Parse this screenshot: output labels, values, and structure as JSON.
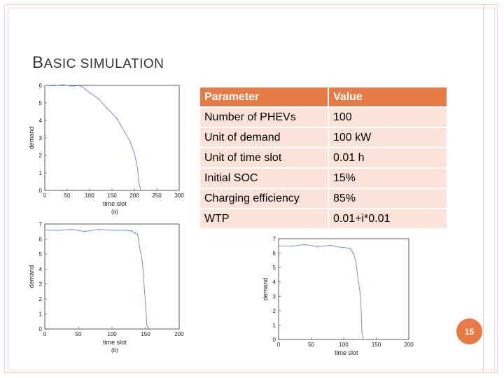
{
  "slide": {
    "title_first": "B",
    "title_rest": "ASIC SIMULATION",
    "page_number": "15"
  },
  "table": {
    "headers": [
      "Parameter",
      "Value"
    ],
    "rows": [
      [
        "Number of PHEVs",
        "100"
      ],
      [
        "Unit of demand",
        "100 kW"
      ],
      [
        "Unit of time slot",
        "0.01 h"
      ],
      [
        "Initial SOC",
        "15%"
      ],
      [
        "Charging efficiency",
        "85%"
      ],
      [
        "WTP",
        "0.01+i*0.01"
      ]
    ]
  },
  "colors": {
    "accent": "#e87a45",
    "row_fill": "#fbe3d9",
    "curve": "#6f7fd0"
  },
  "chart_data": [
    {
      "type": "line",
      "id": "a",
      "caption": "(a)",
      "xlabel": "time slot",
      "ylabel": "demand",
      "xlim": [
        0,
        300
      ],
      "ylim": [
        0,
        6
      ],
      "xticks": [
        0,
        50,
        100,
        150,
        200,
        250,
        300
      ],
      "yticks": [
        0,
        1,
        2,
        3,
        4,
        5,
        6
      ],
      "x": [
        0,
        20,
        40,
        60,
        80,
        90,
        100,
        120,
        140,
        160,
        180,
        190,
        200,
        205,
        208,
        210,
        212,
        215
      ],
      "y": [
        6,
        6,
        6,
        6,
        5.95,
        5.8,
        5.6,
        5.2,
        4.7,
        4.1,
        3.3,
        2.8,
        2.1,
        1.6,
        1.0,
        0.5,
        0.2,
        0
      ]
    },
    {
      "type": "line",
      "id": "b",
      "caption": "(b)",
      "xlabel": "time slot",
      "ylabel": "demand",
      "xlim": [
        0,
        200
      ],
      "ylim": [
        0,
        7
      ],
      "xticks": [
        0,
        50,
        100,
        150,
        200
      ],
      "yticks": [
        0,
        1,
        2,
        3,
        4,
        5,
        6,
        7
      ],
      "x": [
        0,
        20,
        40,
        60,
        80,
        100,
        120,
        130,
        135,
        138,
        140,
        142,
        145,
        147,
        150,
        152,
        155
      ],
      "y": [
        6.6,
        6.6,
        6.6,
        6.55,
        6.6,
        6.6,
        6.6,
        6.5,
        6.4,
        6.3,
        5.8,
        5.2,
        4.5,
        3.5,
        1.5,
        0.3,
        0
      ]
    },
    {
      "type": "line",
      "id": "c",
      "caption": "",
      "xlabel": "time slot",
      "ylabel": "demand",
      "xlim": [
        0,
        200
      ],
      "ylim": [
        0,
        7
      ],
      "xticks": [
        0,
        50,
        100,
        150,
        200
      ],
      "yticks": [
        0,
        1,
        2,
        3,
        4,
        5,
        6,
        7
      ],
      "x": [
        0,
        20,
        40,
        60,
        80,
        90,
        100,
        110,
        115,
        118,
        120,
        122,
        125,
        127,
        128,
        130
      ],
      "y": [
        6.5,
        6.5,
        6.55,
        6.5,
        6.5,
        6.45,
        6.4,
        6.3,
        6.0,
        5.5,
        5.0,
        4.2,
        3.3,
        2.0,
        0.5,
        0
      ]
    }
  ]
}
